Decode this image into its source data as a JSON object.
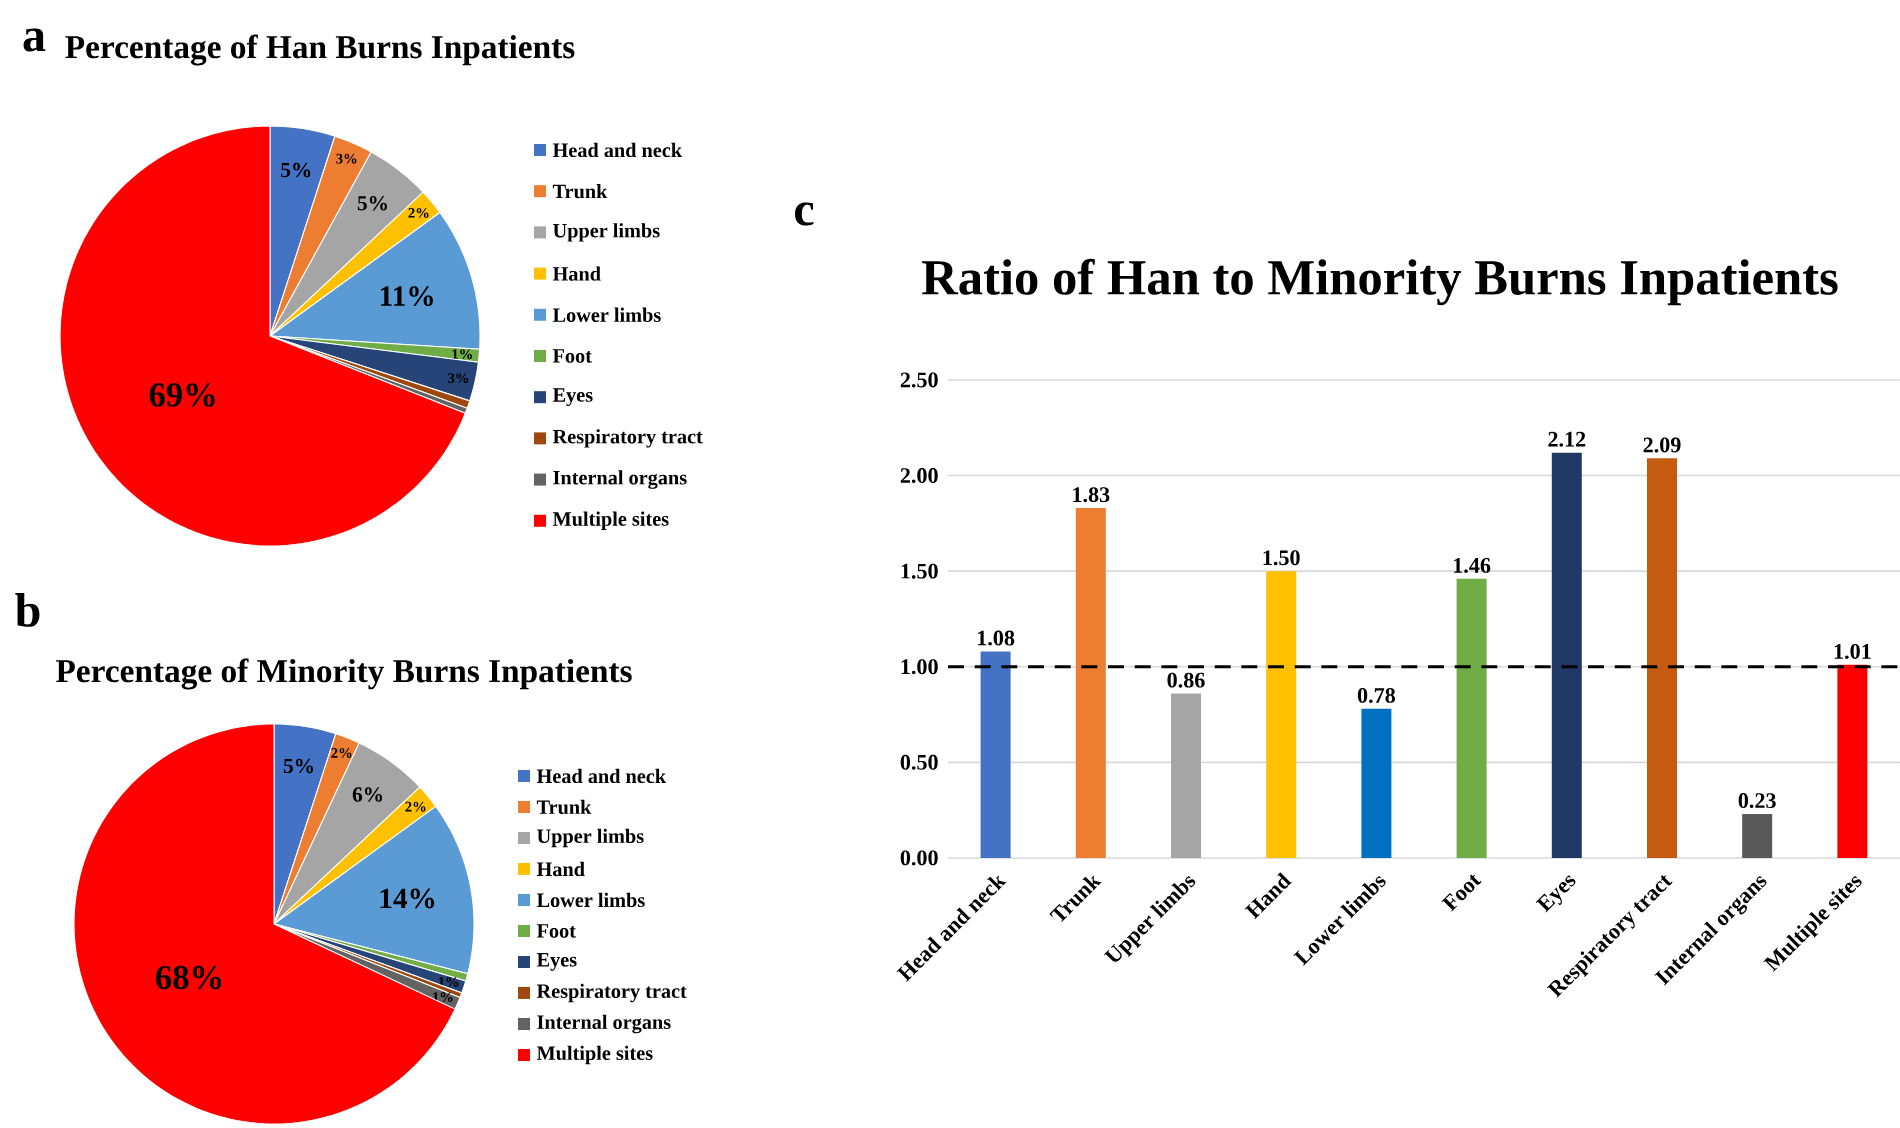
{
  "chart_data": [
    {
      "type": "pie",
      "title": "Percentage of Han Burns Inpatients",
      "annotations": [
        "a"
      ],
      "legend": "right",
      "categories": [
        "Head and neck",
        "Trunk",
        "Upper limbs",
        "Hand",
        "Lower limbs",
        "Foot",
        "Eyes",
        "Respiratory tract",
        "Internal organs",
        "Multiple sites"
      ],
      "values": [
        5,
        3,
        5,
        2,
        11,
        1,
        3,
        0.6,
        0.4,
        69
      ],
      "value_labels": [
        "5%",
        "3%",
        "5%",
        "2%",
        "11%",
        "1%",
        "3%",
        null,
        null,
        "69%"
      ],
      "colors": [
        "#4472c4",
        "#ed7d31",
        "#a5a5a5",
        "#ffc000",
        "#5b9bd5",
        "#70ad47",
        "#264478",
        "#9e480e",
        "#636363",
        "#ff0000"
      ]
    },
    {
      "type": "pie",
      "title": "Percentage of Minority Burns Inpatients",
      "annotations": [
        "b"
      ],
      "legend": "right",
      "categories": [
        "Head and neck",
        "Trunk",
        "Upper limbs",
        "Hand",
        "Lower limbs",
        "Foot",
        "Eyes",
        "Respiratory tract",
        "Internal organs",
        "Multiple sites"
      ],
      "values": [
        5,
        2,
        6,
        2,
        14,
        0.6,
        1,
        0.4,
        1,
        68
      ],
      "value_labels": [
        "5%",
        "2%",
        "6%",
        "2%",
        "14%",
        null,
        "1%",
        null,
        "1%",
        "68%"
      ],
      "colors": [
        "#4472c4",
        "#ed7d31",
        "#a5a5a5",
        "#ffc000",
        "#5b9bd5",
        "#70ad47",
        "#264478",
        "#9e480e",
        "#636363",
        "#ff0000"
      ]
    },
    {
      "type": "bar",
      "title": "Ratio of Han to Minority Burns Inpatients",
      "annotations": [
        "c"
      ],
      "categories": [
        "Head and neck",
        "Trunk",
        "Upper limbs",
        "Hand",
        "Lower limbs",
        "Foot",
        "Eyes",
        "Respiratory tract",
        "Internal organs",
        "Multiple sites"
      ],
      "values": [
        1.08,
        1.83,
        0.86,
        1.5,
        0.78,
        1.46,
        2.12,
        2.09,
        0.23,
        1.01
      ],
      "value_labels": [
        "1.08",
        "1.83",
        "0.86",
        "1.50",
        "0.78",
        "1.46",
        "2.12",
        "2.09",
        "0.23",
        "1.01"
      ],
      "colors": [
        "#4472c4",
        "#ed7d31",
        "#a5a5a5",
        "#ffc000",
        "#0070c0",
        "#70ad47",
        "#1f3864",
        "#c55a11",
        "#595959",
        "#ff0000"
      ],
      "ylim": [
        0,
        2.5
      ],
      "grid": "y",
      "yticks": [
        {
          "value": 0,
          "label": "0.00"
        },
        {
          "value": 0.5,
          "label": "0.50"
        },
        {
          "value": 1,
          "label": "1.00"
        },
        {
          "value": 1.5,
          "label": "1.50"
        },
        {
          "value": 2,
          "label": "2.00"
        },
        {
          "value": 2.5,
          "label": "2.50"
        }
      ],
      "ref_lines": [
        {
          "axis": "y",
          "value": 1,
          "color": "#000000",
          "line_style": "dashed"
        }
      ]
    }
  ]
}
